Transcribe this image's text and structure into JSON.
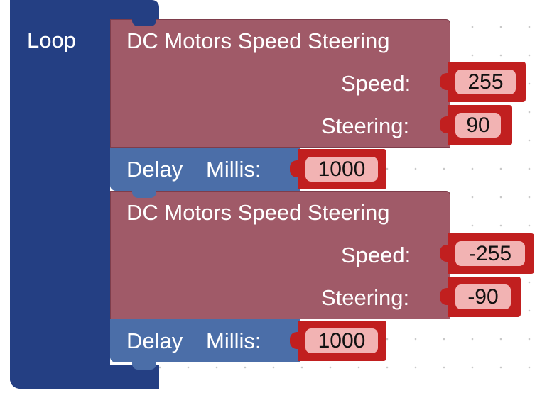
{
  "loop": {
    "label": "Loop"
  },
  "blocks": [
    {
      "type": "motor",
      "title": "DC Motors Speed Steering",
      "speed_label": "Speed:",
      "speed_value": "255",
      "steering_label": "Steering:",
      "steering_value": "90"
    },
    {
      "type": "delay",
      "label": "Delay",
      "millis_label": "Millis:",
      "millis_value": "1000"
    },
    {
      "type": "motor",
      "title": "DC Motors Speed Steering",
      "speed_label": "Speed:",
      "speed_value": "-255",
      "steering_label": "Steering:",
      "steering_value": "-90"
    },
    {
      "type": "delay",
      "label": "Delay",
      "millis_label": "Millis:",
      "millis_value": "1000"
    }
  ]
}
